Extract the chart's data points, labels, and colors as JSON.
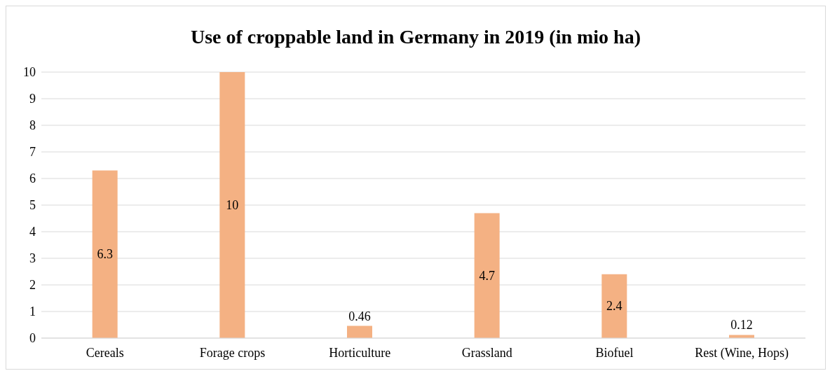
{
  "chart_data": {
    "type": "bar",
    "title": "Use of croppable land in Germany in 2019 (in mio ha)",
    "categories": [
      "Cereals",
      "Forage crops",
      "Horticulture",
      "Grassland",
      "Biofuel",
      "Rest (Wine, Hops)"
    ],
    "values": [
      6.3,
      10,
      0.46,
      4.7,
      2.4,
      0.12
    ],
    "color": "#f4b183",
    "ylim": [
      0,
      10
    ],
    "yticks": [
      0,
      1,
      2,
      3,
      4,
      5,
      6,
      7,
      8,
      9,
      10
    ],
    "grid": "y",
    "data_labels": true
  }
}
